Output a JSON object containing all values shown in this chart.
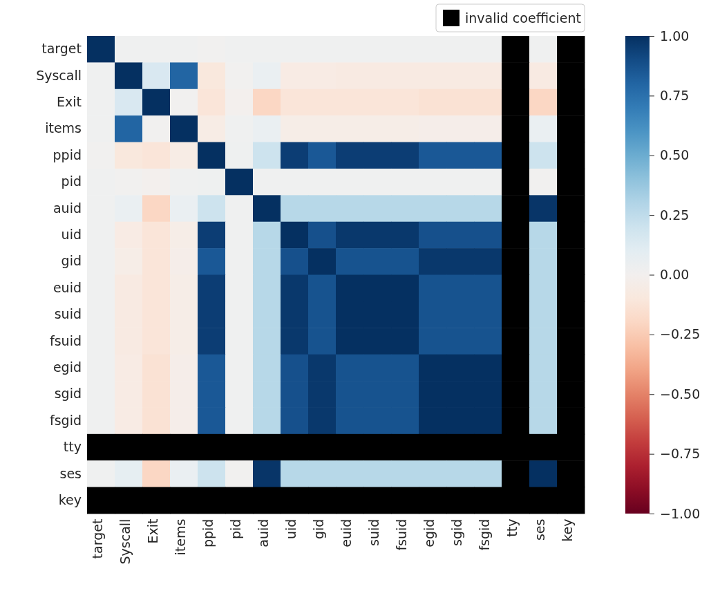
{
  "chart_data": {
    "type": "heatmap",
    "categories": [
      "target",
      "Syscall",
      "Exit",
      "items",
      "ppid",
      "pid",
      "auid",
      "uid",
      "gid",
      "euid",
      "suid",
      "fsuid",
      "egid",
      "sgid",
      "fsgid",
      "tty",
      "ses",
      "key"
    ],
    "y_categories": [
      "target",
      "Syscall",
      "Exit",
      "items",
      "ppid",
      "pid",
      "auid",
      "uid",
      "gid",
      "euid",
      "suid",
      "fsuid",
      "egid",
      "sgid",
      "fsgid",
      "tty",
      "ses",
      "key"
    ],
    "cells": [
      [
        1,
        0.02,
        0.02,
        0.02,
        0.01,
        0.02,
        0.02,
        0.02,
        0.02,
        0.02,
        0.02,
        0.02,
        0.02,
        0.02,
        0.02,
        null,
        0.02,
        null
      ],
      [
        0.02,
        1,
        0.15,
        0.8,
        -0.1,
        0.01,
        0.06,
        -0.07,
        -0.07,
        -0.08,
        -0.08,
        -0.08,
        -0.08,
        -0.08,
        -0.08,
        null,
        -0.08,
        null
      ],
      [
        0.02,
        0.15,
        1,
        0.01,
        -0.12,
        -0.01,
        -0.2,
        -0.12,
        -0.12,
        -0.12,
        -0.12,
        -0.12,
        -0.14,
        -0.14,
        -0.14,
        null,
        -0.2,
        null
      ],
      [
        0.02,
        0.8,
        0.01,
        1,
        -0.06,
        0.02,
        0.06,
        -0.05,
        -0.05,
        -0.05,
        -0.05,
        -0.05,
        -0.04,
        -0.04,
        -0.04,
        null,
        0.06,
        null
      ],
      [
        0.01,
        -0.1,
        -0.12,
        -0.06,
        1,
        0.03,
        0.2,
        0.95,
        0.85,
        0.95,
        0.95,
        0.95,
        0.85,
        0.85,
        0.85,
        null,
        0.2,
        null
      ],
      [
        0.02,
        0.01,
        -0.01,
        0.02,
        0.03,
        1,
        0.02,
        0.02,
        0.02,
        0.02,
        0.02,
        0.02,
        0.02,
        0.02,
        0.02,
        null,
        0.01,
        null
      ],
      [
        0.02,
        0.06,
        -0.2,
        0.06,
        0.2,
        0.02,
        1,
        0.28,
        0.28,
        0.28,
        0.28,
        0.28,
        0.28,
        0.28,
        0.28,
        null,
        0.98,
        null
      ],
      [
        0.02,
        -0.07,
        -0.12,
        -0.05,
        0.95,
        0.02,
        0.28,
        1,
        0.88,
        0.97,
        0.97,
        0.97,
        0.88,
        0.88,
        0.88,
        null,
        0.28,
        null
      ],
      [
        0.02,
        -0.05,
        -0.12,
        -0.04,
        0.85,
        0.02,
        0.28,
        0.88,
        1,
        0.87,
        0.87,
        0.87,
        0.97,
        0.97,
        0.97,
        null,
        0.28,
        null
      ],
      [
        0.02,
        -0.08,
        -0.12,
        -0.05,
        0.95,
        0.02,
        0.28,
        0.97,
        0.87,
        1,
        1,
        1,
        0.87,
        0.87,
        0.87,
        null,
        0.28,
        null
      ],
      [
        0.02,
        -0.08,
        -0.12,
        -0.05,
        0.95,
        0.02,
        0.28,
        0.97,
        0.87,
        1,
        1,
        1,
        0.87,
        0.87,
        0.87,
        null,
        0.28,
        null
      ],
      [
        0.02,
        -0.08,
        -0.12,
        -0.05,
        0.95,
        0.02,
        0.28,
        0.97,
        0.87,
        1,
        1,
        1,
        0.87,
        0.87,
        0.87,
        null,
        0.28,
        null
      ],
      [
        0.02,
        -0.07,
        -0.14,
        -0.04,
        0.85,
        0.02,
        0.28,
        0.88,
        0.97,
        0.87,
        0.87,
        0.87,
        1,
        1,
        1,
        null,
        0.28,
        null
      ],
      [
        0.02,
        -0.07,
        -0.14,
        -0.04,
        0.85,
        0.02,
        0.28,
        0.88,
        0.97,
        0.87,
        0.87,
        0.87,
        1,
        1,
        1,
        null,
        0.28,
        null
      ],
      [
        0.02,
        -0.07,
        -0.14,
        -0.04,
        0.85,
        0.02,
        0.28,
        0.88,
        0.97,
        0.87,
        0.87,
        0.87,
        1,
        1,
        1,
        null,
        0.28,
        null
      ],
      [
        null,
        null,
        null,
        null,
        null,
        null,
        null,
        null,
        null,
        null,
        null,
        null,
        null,
        null,
        null,
        null,
        null,
        null
      ],
      [
        0.02,
        0.08,
        -0.2,
        0.06,
        0.2,
        0.01,
        0.98,
        0.28,
        0.28,
        0.28,
        0.28,
        0.28,
        0.28,
        0.28,
        0.28,
        null,
        1,
        null
      ],
      [
        null,
        null,
        null,
        null,
        null,
        null,
        null,
        null,
        null,
        null,
        null,
        null,
        null,
        null,
        null,
        null,
        null,
        null
      ]
    ],
    "clim": [
      -1,
      1
    ],
    "cticks": [
      {
        "value": -1,
        "label": "−1.00"
      },
      {
        "value": -0.75,
        "label": "−0.75"
      },
      {
        "value": -0.5,
        "label": "−0.50"
      },
      {
        "value": -0.25,
        "label": "−0.25"
      },
      {
        "value": 0,
        "label": "0.00"
      },
      {
        "value": 0.25,
        "label": "0.25"
      },
      {
        "value": 0.5,
        "label": "0.50"
      },
      {
        "value": 0.75,
        "label": "0.75"
      },
      {
        "value": 1,
        "label": "1.00"
      }
    ],
    "legend_title": "invalid coefficient"
  }
}
